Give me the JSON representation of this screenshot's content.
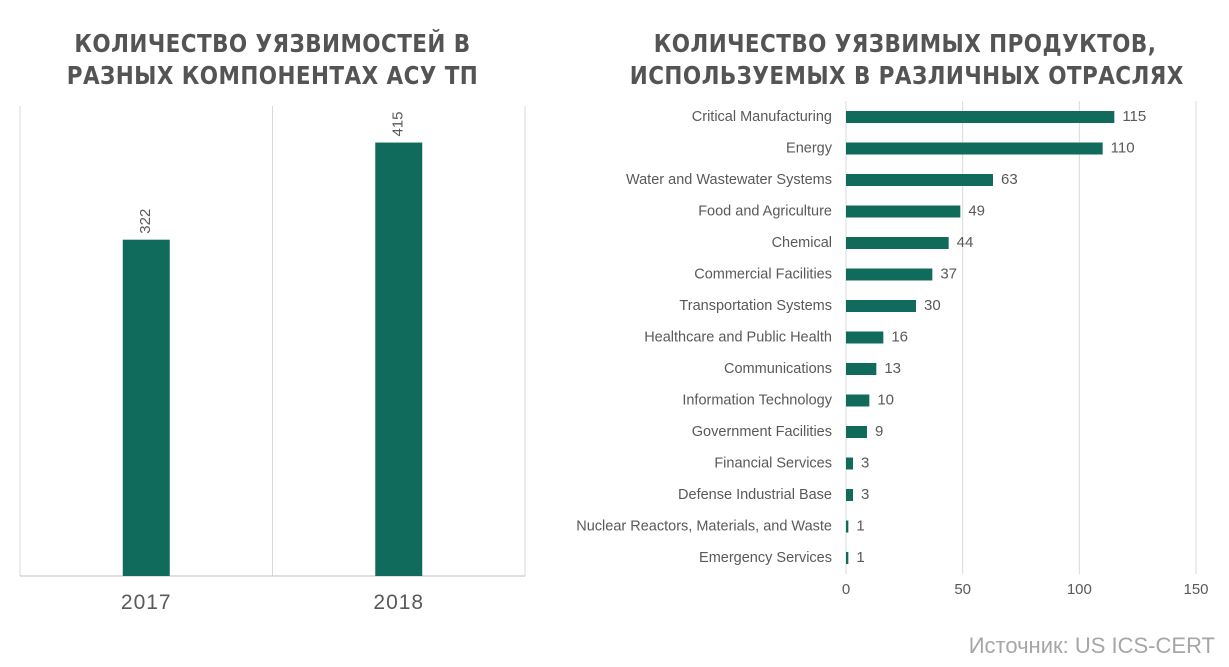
{
  "colors": {
    "bar": "#116b5c",
    "grid": "#d9d9d9",
    "axis": "#bfbfbf",
    "text": "#595959",
    "source": "#a6a6a6"
  },
  "chart_data": [
    {
      "type": "bar",
      "orientation": "vertical",
      "title_lines": [
        "КОЛИЧЕСТВО УЯЗВИМОСТЕЙ В",
        "РАЗНЫХ КОМПОНЕНТАХ АСУ ТП"
      ],
      "categories": [
        "2017",
        "2018"
      ],
      "values": [
        322,
        415
      ],
      "data_labels": [
        "322",
        "415"
      ],
      "ylim": [
        0,
        450
      ],
      "grid": true
    },
    {
      "type": "bar",
      "orientation": "horizontal",
      "title_lines": [
        "КОЛИЧЕСТВО УЯЗВИМЫХ ПРОДУКТОВ,",
        "ИСПОЛЬЗУЕМЫХ В РАЗЛИЧНЫХ ОТРАСЛЯХ"
      ],
      "categories": [
        "Critical Manufacturing",
        "Energy",
        "Water and Wastewater Systems",
        "Food and Agriculture",
        "Chemical",
        "Commercial Facilities",
        "Transportation Systems",
        "Healthcare and Public Health",
        "Communications",
        "Information Technology",
        "Government Facilities",
        "Financial Services",
        "Defense Industrial Base",
        "Nuclear Reactors, Materials, and Waste",
        "Emergency Services"
      ],
      "values": [
        115,
        110,
        63,
        49,
        44,
        37,
        30,
        16,
        13,
        10,
        9,
        3,
        3,
        1,
        1
      ],
      "data_labels": [
        "115",
        "110",
        "63",
        "49",
        "44",
        "37",
        "30",
        "16",
        "13",
        "10",
        "9",
        "3",
        "3",
        "1",
        "1"
      ],
      "xlim": [
        0,
        150
      ],
      "xticks": [
        0,
        50,
        100,
        150
      ],
      "xtick_labels": [
        "0",
        "50",
        "100",
        "150"
      ],
      "grid": true
    }
  ],
  "source": "Источник: US ICS-CERT"
}
